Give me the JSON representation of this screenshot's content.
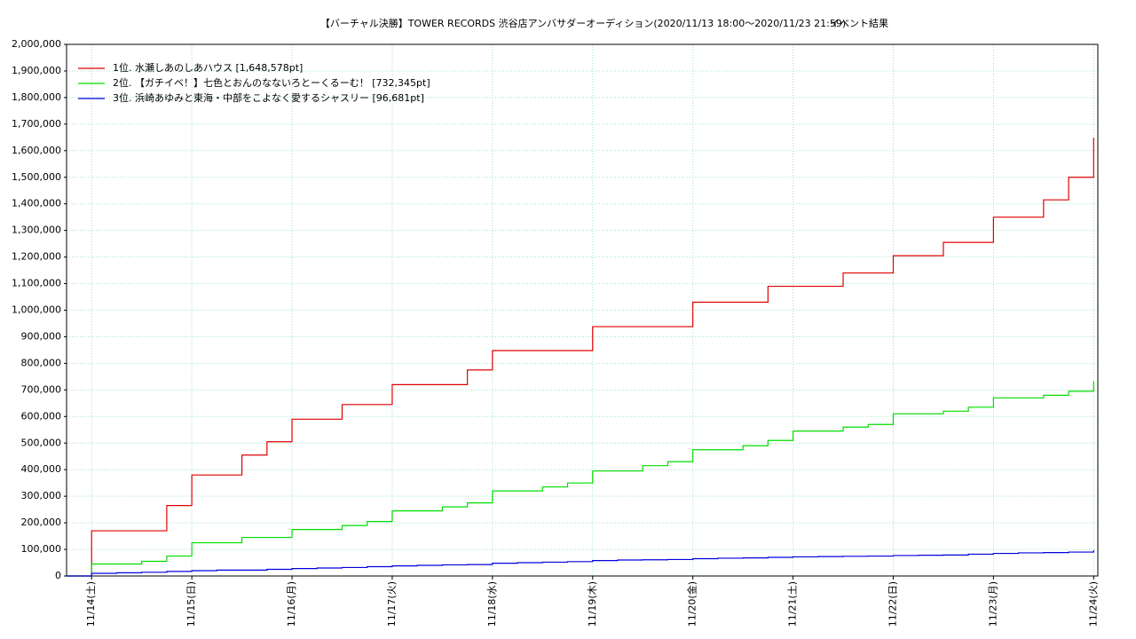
{
  "chart_data": {
    "type": "line",
    "step": true,
    "title": "【バーチャル決勝】TOWER RECORDS 渋谷店アンバサダーオーディション(2020/11/13 18:00〜2020/11/23 21:59)",
    "subtitle": "イベント結果",
    "x": [
      "11/13 18:00",
      "11/14 00:00",
      "11/14 06:00",
      "11/14 12:00",
      "11/14 18:00",
      "11/15 00:00",
      "11/15 06:00",
      "11/15 12:00",
      "11/15 18:00",
      "11/16 00:00",
      "11/16 06:00",
      "11/16 12:00",
      "11/16 18:00",
      "11/17 00:00",
      "11/17 06:00",
      "11/17 12:00",
      "11/17 18:00",
      "11/18 00:00",
      "11/18 06:00",
      "11/18 12:00",
      "11/18 18:00",
      "11/19 00:00",
      "11/19 06:00",
      "11/19 12:00",
      "11/19 18:00",
      "11/20 00:00",
      "11/20 06:00",
      "11/20 12:00",
      "11/20 18:00",
      "11/21 00:00",
      "11/21 06:00",
      "11/21 12:00",
      "11/21 18:00",
      "11/22 00:00",
      "11/22 06:00",
      "11/22 12:00",
      "11/22 18:00",
      "11/23 00:00",
      "11/23 06:00",
      "11/23 12:00",
      "11/23 18:00",
      "11/24 00:00"
    ],
    "series": [
      {
        "name": "1位. 水瀬しあのしあハウス [1,648,578pt]",
        "color": "#e00000",
        "values": [
          0,
          170000,
          170000,
          170000,
          265000,
          380000,
          380000,
          455000,
          505000,
          590000,
          590000,
          645000,
          645000,
          720000,
          720000,
          720000,
          775000,
          848000,
          848000,
          848000,
          848000,
          938000,
          938000,
          938000,
          938000,
          1030000,
          1030000,
          1030000,
          1090000,
          1090000,
          1090000,
          1140000,
          1140000,
          1205000,
          1205000,
          1255000,
          1255000,
          1350000,
          1350000,
          1415000,
          1500000,
          1648578
        ]
      },
      {
        "name": "2位. 【ガチイベ！】七色とおんのなないろとーくるーむ！ [732,345pt]",
        "color": "#00dd00",
        "values": [
          0,
          45000,
          45000,
          55000,
          75000,
          125000,
          125000,
          145000,
          145000,
          175000,
          175000,
          190000,
          205000,
          245000,
          245000,
          260000,
          275000,
          320000,
          320000,
          335000,
          350000,
          395000,
          395000,
          415000,
          430000,
          475000,
          475000,
          490000,
          510000,
          545000,
          545000,
          560000,
          570000,
          610000,
          610000,
          620000,
          635000,
          670000,
          670000,
          680000,
          695000,
          732345
        ]
      },
      {
        "name": "3位. 浜崎あゆみと東海・中部をこよなく愛するシャスリー [96,681pt]",
        "color": "#0000dd",
        "values": [
          0,
          10000,
          12000,
          14000,
          17000,
          20000,
          22000,
          22000,
          25000,
          28000,
          30000,
          32000,
          35000,
          38000,
          40000,
          42000,
          43000,
          48000,
          50000,
          52000,
          54000,
          58000,
          60000,
          61000,
          62000,
          65000,
          67000,
          68000,
          70000,
          72000,
          73000,
          74000,
          75000,
          77000,
          78000,
          79000,
          82000,
          85000,
          87000,
          88000,
          90000,
          96681
        ]
      }
    ],
    "xlim": [
      "11/13 18:00",
      "11/24 01:00"
    ],
    "xticks": [
      {
        "value": "11/14 00:00",
        "label": "11/14(土)"
      },
      {
        "value": "11/15 00:00",
        "label": "11/15(日)"
      },
      {
        "value": "11/16 00:00",
        "label": "11/16(月)"
      },
      {
        "value": "11/17 00:00",
        "label": "11/17(火)"
      },
      {
        "value": "11/18 00:00",
        "label": "11/18(水)"
      },
      {
        "value": "11/19 00:00",
        "label": "11/19(木)"
      },
      {
        "value": "11/20 00:00",
        "label": "11/20(金)"
      },
      {
        "value": "11/21 00:00",
        "label": "11/21(土)"
      },
      {
        "value": "11/22 00:00",
        "label": "11/22(日)"
      },
      {
        "value": "11/23 00:00",
        "label": "11/23(月)"
      },
      {
        "value": "11/24 00:00",
        "label": "11/24(火)"
      }
    ],
    "ylim": [
      0,
      2000000
    ],
    "yticks": [
      0,
      {
        "value": 100000,
        "label": "100,000"
      },
      {
        "value": 200000,
        "label": "200,000"
      },
      {
        "value": 300000,
        "label": "300,000"
      },
      {
        "value": 400000,
        "label": "400,000"
      },
      {
        "value": 500000,
        "label": "500,000"
      },
      {
        "value": 600000,
        "label": "600,000"
      },
      {
        "value": 700000,
        "label": "700,000"
      },
      {
        "value": 800000,
        "label": "800,000"
      },
      {
        "value": 900000,
        "label": "900,000"
      },
      {
        "value": 1000000,
        "label": "1,000,000"
      },
      {
        "value": 1100000,
        "label": "1,100,000"
      },
      {
        "value": 1200000,
        "label": "1,200,000"
      },
      {
        "value": 1300000,
        "label": "1,300,000"
      },
      {
        "value": 1400000,
        "label": "1,400,000"
      },
      {
        "value": 1500000,
        "label": "1,500,000"
      },
      {
        "value": 1600000,
        "label": "1,600,000"
      },
      {
        "value": 1700000,
        "label": "1,700,000"
      },
      {
        "value": 1800000,
        "label": "1,800,000"
      },
      {
        "value": 1900000,
        "label": "1,900,000"
      },
      {
        "value": 2000000,
        "label": "2,000,000"
      }
    ],
    "grid": true,
    "legend": "upper left"
  }
}
